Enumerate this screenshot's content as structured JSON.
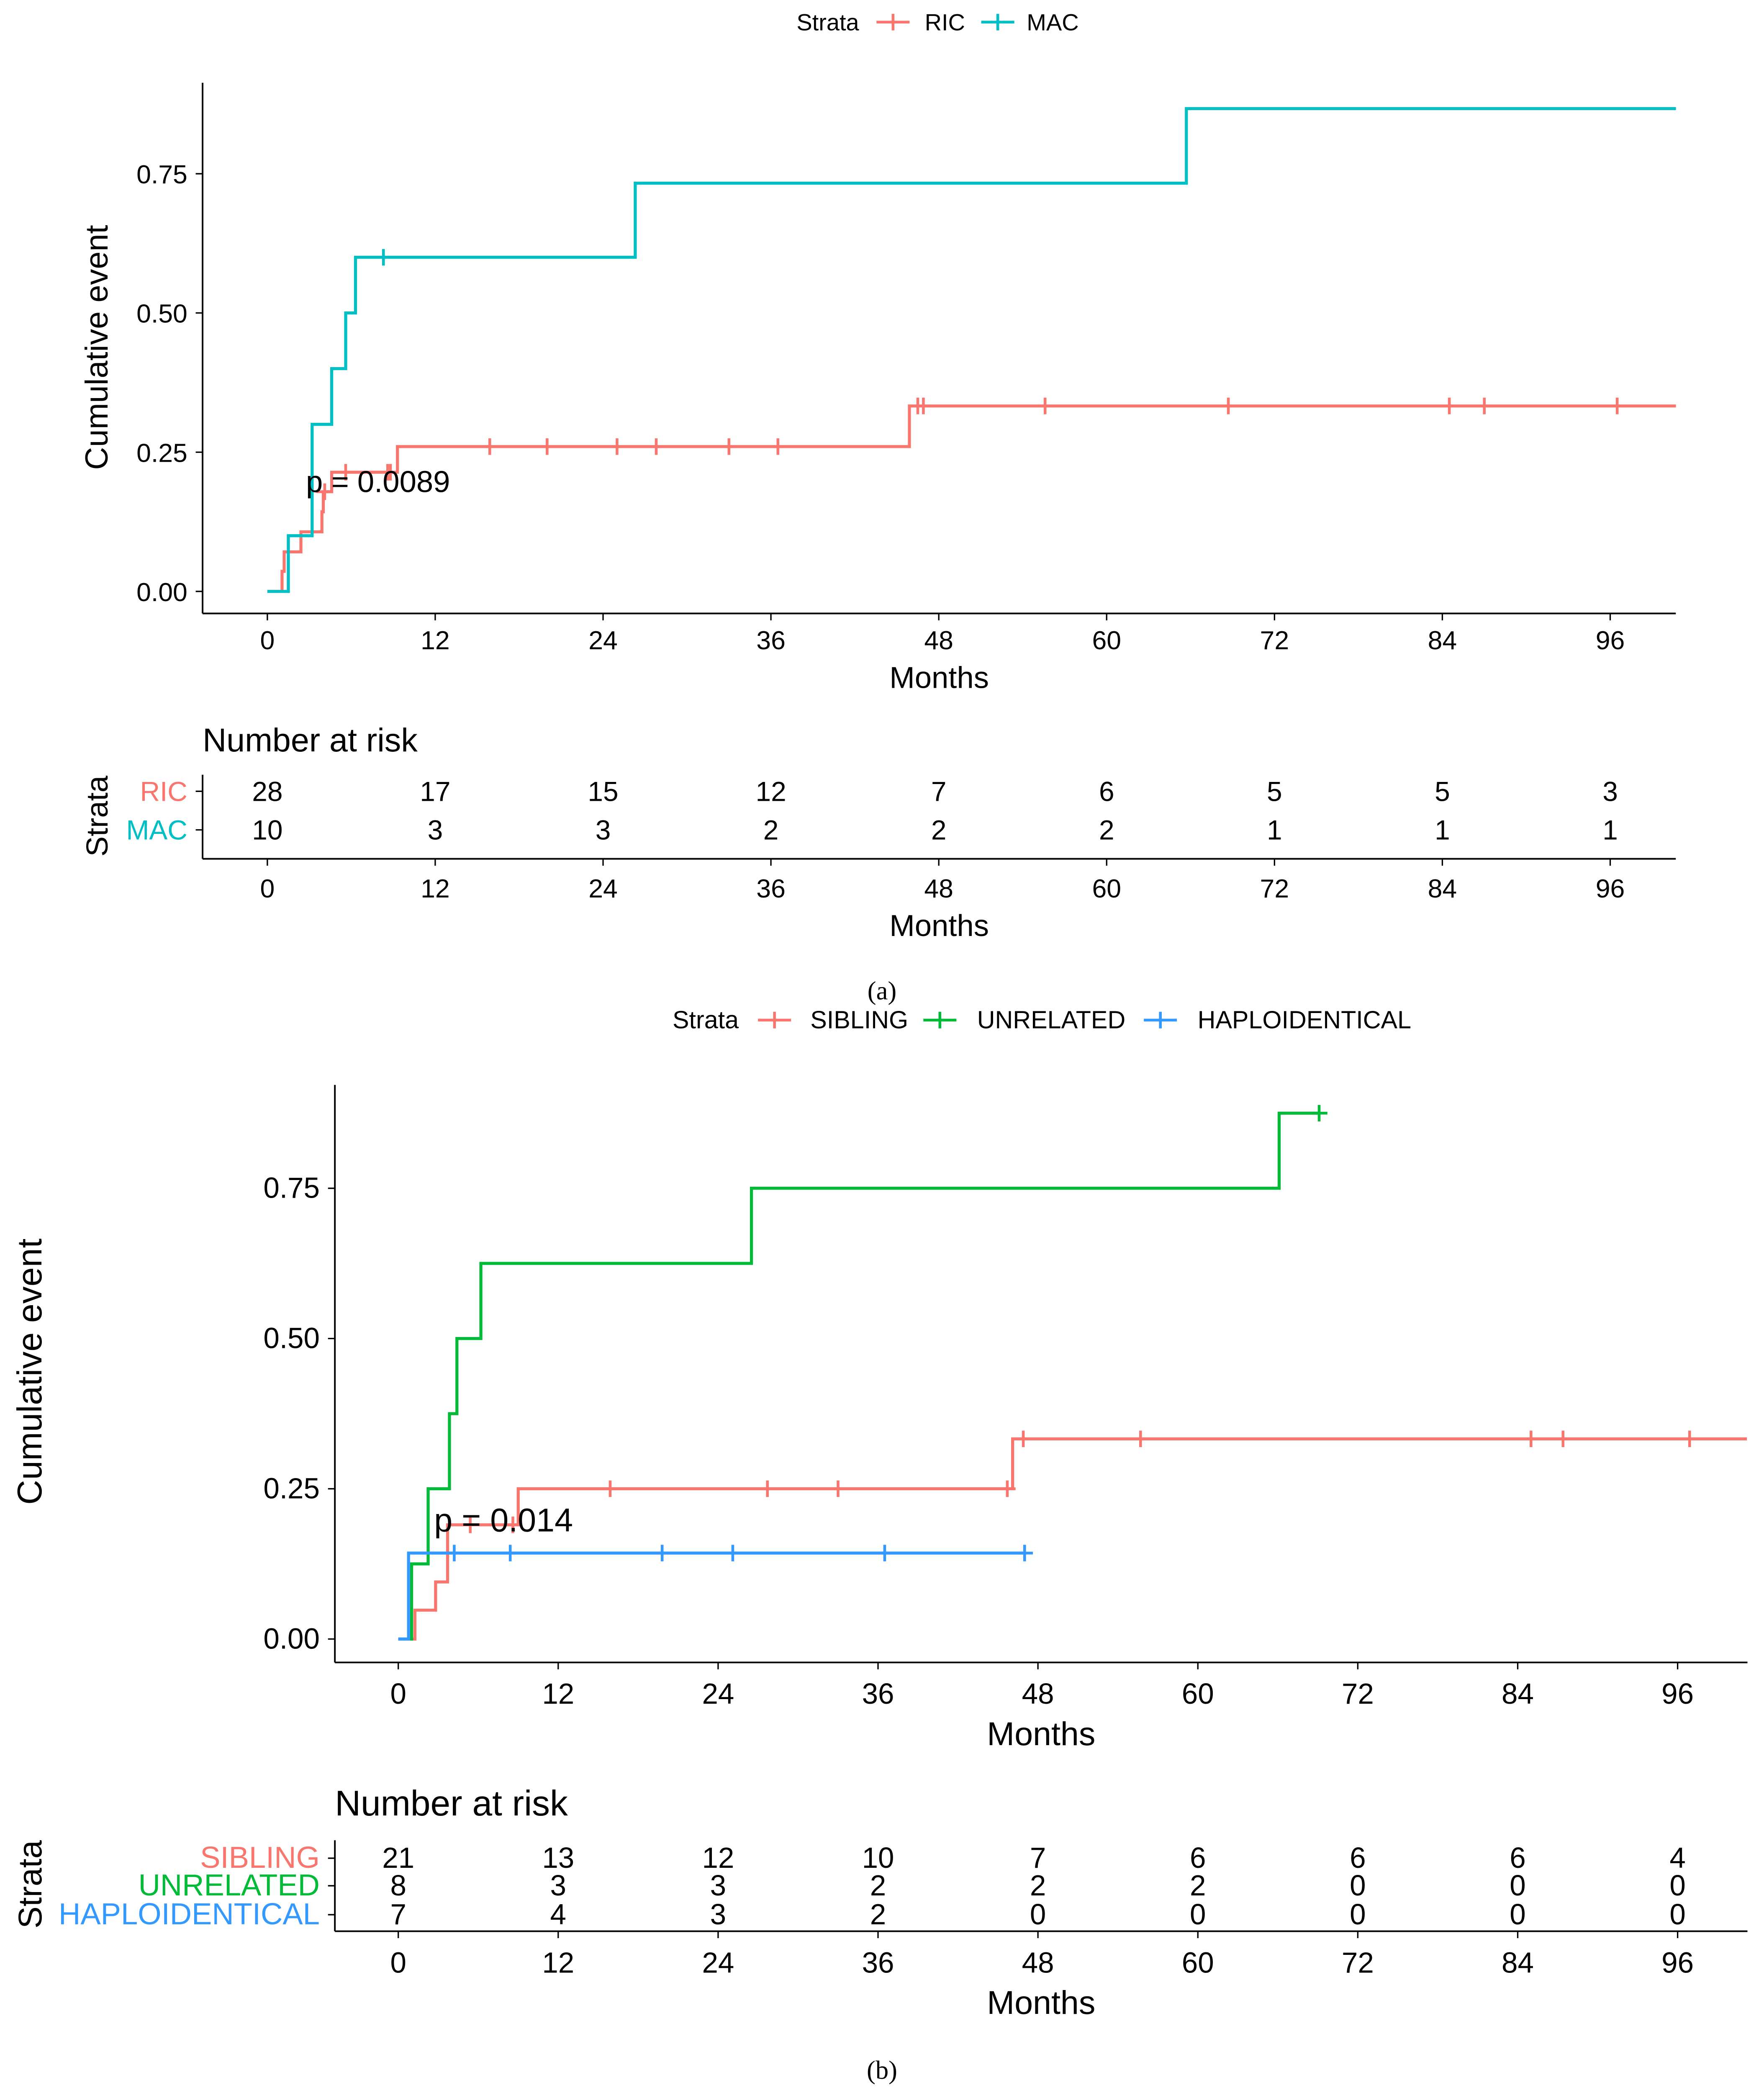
{
  "chart_data": [
    {
      "type": "line",
      "panel_caption": "(a)",
      "caption_letter": "a",
      "legend_title": "Strata",
      "legend": [
        "RIC",
        "MAC"
      ],
      "xlabel": "Months",
      "ylabel": "Cumulative event",
      "xticks": [
        0,
        12,
        24,
        36,
        48,
        60,
        72,
        84,
        96
      ],
      "xtick_labels": [
        "0",
        "12",
        "24",
        "36",
        "48",
        "60",
        "72",
        "84",
        "96"
      ],
      "yticks": [
        0,
        0.25,
        0.5,
        0.75
      ],
      "ytick_labels": [
        "0.00",
        "0.25",
        "0.50",
        "0.75"
      ],
      "xlim": [
        -4.6,
        100.7
      ],
      "ylim": [
        0,
        0.9
      ],
      "pvalue": "p = 0.0089",
      "series": [
        {
          "name": "RIC",
          "color": "#F8766D",
          "steps": [
            [
              0,
              0
            ],
            [
              1.05,
              0.036
            ],
            [
              1.2,
              0.071
            ],
            [
              2.4,
              0.107
            ],
            [
              3.9,
              0.143
            ],
            [
              4.0,
              0.179
            ],
            [
              4.6,
              0.214
            ],
            [
              9.3,
              0.26
            ],
            [
              45.9,
              0.333
            ]
          ],
          "censored": [
            4.1,
            5.6,
            8.6,
            8.8,
            15.9,
            20.0,
            25.0,
            27.8,
            33.0,
            36.5,
            46.5,
            46.9,
            55.6,
            68.7,
            84.5,
            87.0,
            96.5
          ],
          "end": 100.7
        },
        {
          "name": "MAC",
          "color": "#00BFC4",
          "steps": [
            [
              0,
              0
            ],
            [
              1.5,
              0.1
            ],
            [
              3.2,
              0.3
            ],
            [
              4.6,
              0.4
            ],
            [
              5.6,
              0.5
            ],
            [
              6.3,
              0.6
            ],
            [
              26.3,
              0.733
            ],
            [
              65.7,
              0.867
            ]
          ],
          "censored": [
            8.3
          ],
          "end": 100.7
        }
      ],
      "risk_table": {
        "title": "Number at risk",
        "ylabel": "Strata",
        "xlabel": "Months",
        "rows": [
          {
            "name": "RIC",
            "values": [
              "28",
              "17",
              "15",
              "12",
              "7",
              "6",
              "5",
              "5",
              "3"
            ]
          },
          {
            "name": "MAC",
            "values": [
              "10",
              "3",
              "3",
              "2",
              "2",
              "2",
              "1",
              "1",
              "1"
            ]
          }
        ]
      }
    },
    {
      "type": "line",
      "panel_caption": "(b)",
      "caption_letter": "b",
      "legend_title": "Strata",
      "legend": [
        "SIBLING",
        "UNRELATED",
        "HAPLOIDENTICAL"
      ],
      "xlabel": "Months",
      "ylabel": "Cumulative event",
      "xticks": [
        0,
        12,
        24,
        36,
        48,
        60,
        72,
        84,
        96
      ],
      "xtick_labels": [
        "0",
        "12",
        "24",
        "36",
        "48",
        "60",
        "72",
        "84",
        "96"
      ],
      "yticks": [
        0,
        0.25,
        0.5,
        0.75
      ],
      "ytick_labels": [
        "0.00",
        "0.25",
        "0.50",
        "0.75"
      ],
      "xlim": [
        -4.8,
        101.2
      ],
      "ylim": [
        0,
        0.95
      ],
      "pvalue": "p = 0.014",
      "series": [
        {
          "name": "SIBLING",
          "color": "#F8766D",
          "steps": [
            [
              0,
              0
            ],
            [
              1.25,
              0.048
            ],
            [
              2.8,
              0.095
            ],
            [
              3.7,
              0.19
            ],
            [
              9.0,
              0.25
            ],
            [
              46.1,
              0.333
            ]
          ],
          "censored": [
            5.4,
            8.6,
            15.9,
            27.7,
            33.0,
            45.7,
            46.9,
            55.7,
            85.0,
            87.4,
            96.9
          ],
          "end": 101.2
        },
        {
          "name": "UNRELATED",
          "color": "#00BA38",
          "steps": [
            [
              0,
              0
            ],
            [
              1.0,
              0.125
            ],
            [
              2.24,
              0.25
            ],
            [
              3.84,
              0.375
            ],
            [
              4.4,
              0.5
            ],
            [
              6.2,
              0.625
            ],
            [
              26.5,
              0.75
            ],
            [
              66.1,
              0.875
            ]
          ],
          "censored": [
            69.1
          ],
          "end": 69.1
        },
        {
          "name": "HAPLOIDENTICAL",
          "color": "#3399FF",
          "steps": [
            [
              0,
              0
            ],
            [
              0.77,
              0.143
            ]
          ],
          "censored": [
            4.2,
            8.4,
            19.8,
            25.1,
            36.5,
            47.0
          ],
          "end": 47.0
        }
      ],
      "risk_table": {
        "title": "Number at risk",
        "ylabel": "Strata",
        "xlabel": "Months",
        "rows": [
          {
            "name": "SIBLING",
            "values": [
              "21",
              "13",
              "12",
              "10",
              "7",
              "6",
              "6",
              "6",
              "4"
            ]
          },
          {
            "name": "UNRELATED",
            "values": [
              "8",
              "3",
              "3",
              "2",
              "2",
              "2",
              "0",
              "0",
              "0"
            ]
          },
          {
            "name": "HAPLOIDENTICAL",
            "values": [
              "7",
              "4",
              "3",
              "2",
              "0",
              "0",
              "0",
              "0",
              "0"
            ]
          }
        ]
      }
    }
  ]
}
